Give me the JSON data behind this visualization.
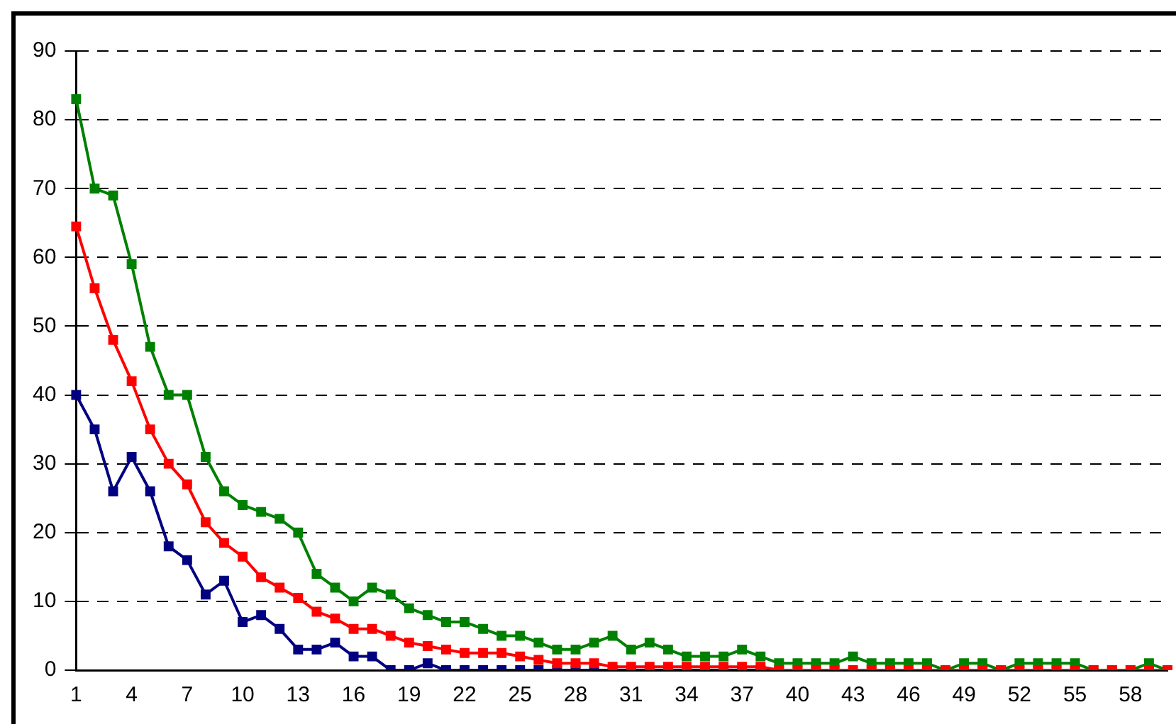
{
  "chart_data": {
    "type": "line",
    "categories": [
      "1",
      null,
      null,
      "4",
      null,
      null,
      "7",
      null,
      null,
      "10",
      null,
      null,
      "13",
      null,
      null,
      "16",
      null,
      null,
      "19",
      null,
      null,
      "22",
      null,
      null,
      "25",
      null,
      null,
      "28",
      null,
      null,
      "31",
      null,
      null,
      "34",
      null,
      null,
      "37",
      null,
      null,
      "40",
      null,
      null,
      "43",
      null,
      null,
      "46",
      null,
      null,
      "49",
      null,
      null,
      "52",
      null,
      null,
      "55",
      null,
      null,
      "58",
      null,
      null
    ],
    "series": [
      {
        "color": "#008000",
        "values": [
          83,
          70,
          69,
          59,
          47,
          40,
          40,
          31,
          26,
          24,
          23,
          22,
          20,
          14,
          12,
          10,
          12,
          11,
          9,
          8,
          7,
          7,
          6,
          5,
          5,
          4,
          3,
          3,
          4,
          5,
          3,
          4,
          3,
          2,
          2,
          2,
          3,
          2,
          1,
          1,
          1,
          1,
          2,
          1,
          1,
          1,
          1,
          0,
          1,
          1,
          0,
          1,
          1,
          1,
          1,
          0,
          0,
          0,
          1,
          0
        ]
      },
      {
        "color": "#ff0000",
        "values": [
          64.5,
          55.5,
          48,
          42,
          35,
          30,
          27,
          21.5,
          18.5,
          16.5,
          13.5,
          12,
          10.5,
          8.5,
          7.5,
          6,
          6,
          5,
          4,
          3.5,
          3,
          2.5,
          2.5,
          2.5,
          2,
          1.5,
          1,
          1,
          1,
          0.5,
          0.5,
          0.5,
          0.5,
          0.5,
          0.5,
          0.5,
          0.5,
          0.5,
          0,
          0,
          0,
          0,
          0,
          0,
          0,
          0,
          0,
          0,
          0,
          0,
          0,
          0,
          0,
          0,
          0,
          0,
          0,
          0,
          0,
          0
        ]
      },
      {
        "color": "#000080",
        "values": [
          40,
          35,
          26,
          31,
          26,
          18,
          16,
          11,
          13,
          7,
          8,
          6,
          3,
          3,
          4,
          2,
          2,
          0,
          0,
          1,
          0,
          0,
          0,
          0,
          0,
          0,
          0,
          0,
          0,
          0,
          0,
          0,
          0,
          0,
          0,
          0,
          0,
          0,
          null,
          null,
          null,
          null,
          null,
          null,
          null,
          null,
          null,
          null,
          null,
          null,
          null,
          null,
          null,
          null,
          null,
          null,
          null,
          null,
          null,
          null
        ]
      }
    ],
    "ylim": [
      0,
      90
    ],
    "yticks": [
      0,
      10,
      20,
      30,
      40,
      50,
      60,
      70,
      80,
      90
    ],
    "grid": "y",
    "legend": false,
    "marker": "square",
    "line_style": "solid"
  }
}
